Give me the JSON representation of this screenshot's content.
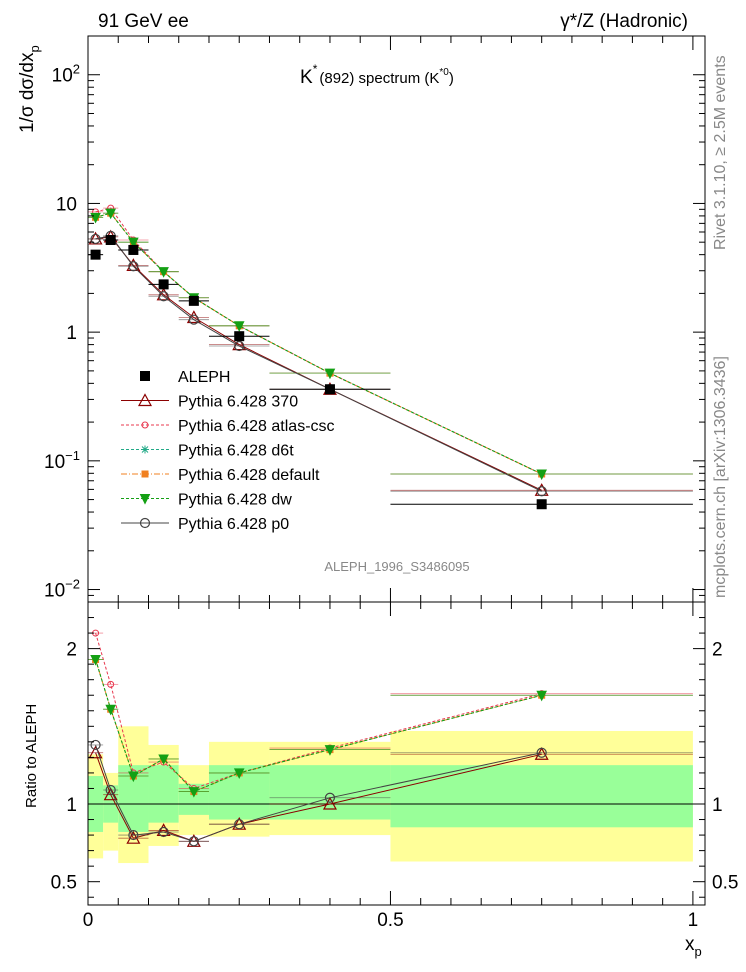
{
  "header": {
    "left": "91 GeV ee",
    "right": "γ*/Z (Hadronic)"
  },
  "side": {
    "top": "Rivet 3.1.10, ≥ 2.5M events",
    "bottom": "mcplots.cern.ch [arXiv:1306.3436]"
  },
  "plot_title": {
    "main": "K",
    "sup": "*",
    "rest": "(892) spectrum (K",
    "sup2": "*0",
    "close": ")"
  },
  "watermark": "ALEPH_1996_S3486095",
  "chart_data": [
    {
      "type": "scatter",
      "title": "K*(892) spectrum (K*0)",
      "xlabel": "x_p",
      "ylabel": "1/σ dσ/dx_p",
      "ylabel_parts": {
        "a": "1/σ dσ/dx",
        "sub": "p"
      },
      "xlim": [
        0,
        1.02
      ],
      "ylim": [
        0.008,
        200
      ],
      "yscale": "log",
      "x_ticklabels": [
        "0",
        "0.5",
        "1"
      ],
      "y_ticklabels": [
        {
          "v": 0.01,
          "base": "10",
          "exp": "−2"
        },
        {
          "v": 0.1,
          "base": "10",
          "exp": "−1"
        },
        {
          "v": 1,
          "base": "1",
          "exp": ""
        },
        {
          "v": 10,
          "base": "10",
          "exp": ""
        },
        {
          "v": 100,
          "base": "10",
          "exp": "2"
        }
      ],
      "legend_position": "center-left",
      "reference": {
        "name": "ALEPH",
        "x": [
          0.0125,
          0.0375,
          0.075,
          0.125,
          0.175,
          0.25,
          0.4,
          0.75
        ],
        "xerr": [
          0.0125,
          0.0125,
          0.025,
          0.025,
          0.025,
          0.05,
          0.1,
          0.25
        ],
        "y": [
          4.0,
          5.2,
          4.35,
          2.35,
          1.75,
          0.93,
          0.36,
          0.046
        ]
      },
      "series": [
        {
          "name": "Pythia 6.428 370",
          "color": "#8b0000",
          "marker": "triangle-open",
          "dash": "",
          "y": [
            5.3,
            5.5,
            3.3,
            1.95,
            1.3,
            0.8,
            0.36,
            0.059
          ]
        },
        {
          "name": "Pythia 6.428 atlas-csc",
          "color": "#e8384f",
          "marker": "circle-open-small",
          "dash": "3,2",
          "y": [
            8.6,
            9.2,
            5.2,
            2.95,
            1.85,
            1.12,
            0.48,
            0.079
          ]
        },
        {
          "name": "Pythia 6.428 d6t",
          "color": "#22aa88",
          "marker": "star",
          "dash": "3,2",
          "y": [
            7.8,
            8.4,
            5.0,
            2.95,
            1.85,
            1.12,
            0.48,
            0.079
          ]
        },
        {
          "name": "Pythia 6.428 default",
          "color": "#f08020",
          "marker": "square-small",
          "dash": "6,2,1,2",
          "y": [
            7.8,
            8.4,
            5.0,
            2.95,
            1.85,
            1.12,
            0.48,
            0.079
          ]
        },
        {
          "name": "Pythia 6.428 dw",
          "color": "#14a014",
          "marker": "triangle-down",
          "dash": "3,2",
          "y": [
            7.8,
            8.4,
            5.0,
            2.95,
            1.85,
            1.12,
            0.48,
            0.079
          ]
        },
        {
          "name": "Pythia 6.428 p0",
          "color": "#444444",
          "marker": "circle-open",
          "dash": "",
          "y": [
            5.3,
            5.6,
            3.25,
            1.9,
            1.25,
            0.78,
            0.36,
            0.058
          ]
        }
      ]
    },
    {
      "type": "scatter",
      "title": "",
      "xlabel": "x_p",
      "xlabel_parts": {
        "a": "x",
        "sub": "p"
      },
      "ylabel": "Ratio to ALEPH",
      "xlim": [
        0,
        1.02
      ],
      "ylim": [
        0.35,
        2.3
      ],
      "yscale": "linear",
      "x_ticklabels": [
        "0",
        "0.5",
        "1"
      ],
      "y_ticklabels": [
        "0.5",
        "1",
        "2"
      ],
      "bands": {
        "x_edges": [
          0,
          0.025,
          0.05,
          0.1,
          0.15,
          0.2,
          0.3,
          0.5,
          1.0
        ],
        "inner": [
          [
            0.82,
            1.18
          ],
          [
            0.88,
            1.12
          ],
          [
            0.82,
            1.25
          ],
          [
            0.88,
            1.25
          ],
          [
            0.93,
            1.13
          ],
          [
            0.9,
            1.25
          ],
          [
            0.9,
            1.25
          ],
          [
            0.85,
            1.25
          ]
        ],
        "outer": [
          [
            0.65,
            1.32
          ],
          [
            0.7,
            1.2
          ],
          [
            0.62,
            1.5
          ],
          [
            0.73,
            1.38
          ],
          [
            0.8,
            1.25
          ],
          [
            0.79,
            1.4
          ],
          [
            0.8,
            1.4
          ],
          [
            0.63,
            1.47
          ]
        ],
        "inner_color": "#99ff99",
        "outer_color": "#ffff99"
      },
      "series": [
        {
          "name": "Pythia 6.428 370",
          "y": [
            1.33,
            1.06,
            0.78,
            0.83,
            0.76,
            0.87,
            1.0,
            1.32
          ]
        },
        {
          "name": "Pythia 6.428 atlas-csc",
          "y": [
            2.1,
            1.77,
            1.2,
            1.27,
            1.1,
            1.2,
            1.36,
            1.71
          ]
        },
        {
          "name": "Pythia 6.428 d6t",
          "y": [
            1.93,
            1.61,
            1.18,
            1.29,
            1.08,
            1.2,
            1.35,
            1.7
          ]
        },
        {
          "name": "Pythia 6.428 default",
          "y": [
            1.93,
            1.61,
            1.18,
            1.29,
            1.08,
            1.2,
            1.35,
            1.7
          ]
        },
        {
          "name": "Pythia 6.428 dw",
          "y": [
            1.93,
            1.61,
            1.18,
            1.29,
            1.08,
            1.2,
            1.35,
            1.7
          ]
        },
        {
          "name": "Pythia 6.428 p0",
          "y": [
            1.38,
            1.09,
            0.8,
            0.82,
            0.76,
            0.87,
            1.04,
            1.33
          ]
        }
      ]
    }
  ]
}
